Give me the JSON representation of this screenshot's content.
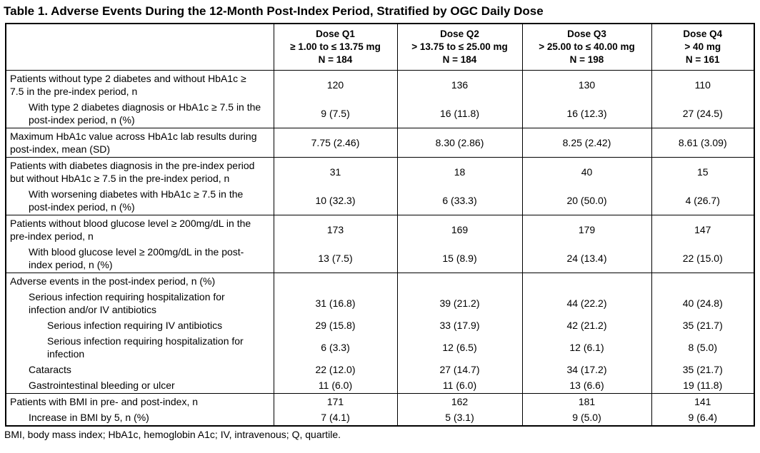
{
  "title": "Table 1. Adverse Events During the 12-Month Post-Index Period, Stratified by OGC Daily Dose",
  "footnote": "BMI, body mass index; HbA1c, hemoglobin A1c; IV, intravenous; Q, quartile.",
  "colors": {
    "background": "#ffffff",
    "text": "#000000",
    "border": "#000000"
  },
  "columns": [
    {
      "id": "dose-q1",
      "lines": [
        "Dose Q1",
        "≥ 1.00 to ≤ 13.75 mg",
        "N = 184"
      ]
    },
    {
      "id": "dose-q2",
      "lines": [
        "Dose Q2",
        "> 13.75 to ≤ 25.00 mg",
        "N = 184"
      ]
    },
    {
      "id": "dose-q3",
      "lines": [
        "Dose Q3",
        "> 25.00 to ≤ 40.00 mg",
        "N = 198"
      ]
    },
    {
      "id": "dose-q4",
      "lines": [
        "Dose Q4",
        "> 40 mg",
        "N = 161"
      ]
    }
  ],
  "rows": [
    {
      "label": "Patients without type 2 diabetes and without HbA1c ≥ 7.5 in the pre-index period, n",
      "indent": 0,
      "group_start": true,
      "values": [
        "120",
        "136",
        "130",
        "110"
      ]
    },
    {
      "label": "With type 2 diabetes diagnosis or HbA1c ≥ 7.5 in the post-index period, n (%)",
      "indent": 1,
      "group_start": false,
      "values": [
        "9 (7.5)",
        "16 (11.8)",
        "16 (12.3)",
        "27 (24.5)"
      ]
    },
    {
      "label": "Maximum HbA1c value across HbA1c lab results during post-index, mean (SD)",
      "indent": 0,
      "group_start": true,
      "values": [
        "7.75 (2.46)",
        "8.30 (2.86)",
        "8.25 (2.42)",
        "8.61 (3.09)"
      ]
    },
    {
      "label": "Patients with diabetes diagnosis in the pre-index period but without HbA1c ≥ 7.5 in the pre-index period, n",
      "indent": 0,
      "group_start": true,
      "values": [
        "31",
        "18",
        "40",
        "15"
      ]
    },
    {
      "label": "With worsening diabetes with HbA1c ≥ 7.5 in the post-index period, n (%)",
      "indent": 1,
      "group_start": false,
      "values": [
        "10 (32.3)",
        "6 (33.3)",
        "20 (50.0)",
        "4 (26.7)"
      ]
    },
    {
      "label": "Patients without blood glucose level ≥ 200mg/dL in the pre-index period, n",
      "indent": 0,
      "group_start": true,
      "values": [
        "173",
        "169",
        "179",
        "147"
      ]
    },
    {
      "label": "With blood glucose level ≥ 200mg/dL in the post-index period, n (%)",
      "indent": 1,
      "group_start": false,
      "values": [
        "13 (7.5)",
        "15 (8.9)",
        "24 (13.4)",
        "22 (15.0)"
      ]
    },
    {
      "label": "Adverse events in the post-index period, n (%)",
      "indent": 0,
      "group_start": true,
      "values": [
        "",
        "",
        "",
        ""
      ]
    },
    {
      "label": "Serious infection requiring hospitalization for infection and/or IV antibiotics",
      "indent": 1,
      "group_start": false,
      "values": [
        "31 (16.8)",
        "39 (21.2)",
        "44 (22.2)",
        "40 (24.8)"
      ]
    },
    {
      "label": "Serious infection requiring IV antibiotics",
      "indent": 2,
      "group_start": false,
      "values": [
        "29 (15.8)",
        "33 (17.9)",
        "42 (21.2)",
        "35 (21.7)"
      ]
    },
    {
      "label": "Serious infection requiring hospitalization for infection",
      "indent": 2,
      "group_start": false,
      "values": [
        "6 (3.3)",
        "12 (6.5)",
        "12 (6.1)",
        "8 (5.0)"
      ]
    },
    {
      "label": "Cataracts",
      "indent": 1,
      "group_start": false,
      "values": [
        "22 (12.0)",
        "27 (14.7)",
        "34 (17.2)",
        "35 (21.7)"
      ]
    },
    {
      "label": "Gastrointestinal bleeding or ulcer",
      "indent": 1,
      "group_start": false,
      "values": [
        "11 (6.0)",
        "11 (6.0)",
        "13 (6.6)",
        "19 (11.8)"
      ]
    },
    {
      "label": "Patients with BMI in pre- and post-index, n",
      "indent": 0,
      "group_start": true,
      "values": [
        "171",
        "162",
        "181",
        "141"
      ]
    },
    {
      "label": "Increase in BMI by 5, n (%)",
      "indent": 1,
      "group_start": false,
      "values": [
        "7 (4.1)",
        "5 (3.1)",
        "9 (5.0)",
        "9 (6.4)"
      ]
    }
  ]
}
